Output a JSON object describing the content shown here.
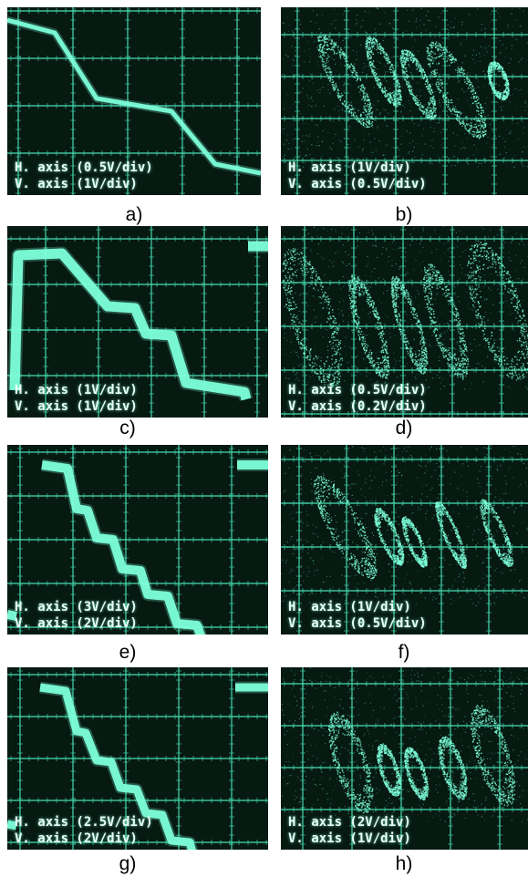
{
  "colors": {
    "screen": "#061a12",
    "grid": "#46d9b0",
    "trace": "#7dffd9"
  },
  "panels": [
    {
      "id": "a",
      "caption": "a)",
      "kind": "staircase",
      "h_axis": "H. axis (0.5V/div)",
      "v_axis": "V. axis (1V/div)"
    },
    {
      "id": "b",
      "caption": "b)",
      "kind": "scatter",
      "h_axis": "H. axis (1V/div)",
      "v_axis": "V. axis (0.5V/div)"
    },
    {
      "id": "c",
      "caption": "c)",
      "kind": "staircase",
      "h_axis": "H. axis (1V/div)",
      "v_axis": "V. axis (1V/div)"
    },
    {
      "id": "d",
      "caption": "d)",
      "kind": "scatter",
      "h_axis": "H. axis (0.5V/div)",
      "v_axis": "V. axis (0.2V/div)"
    },
    {
      "id": "e",
      "caption": "e)",
      "kind": "staircase",
      "h_axis": "H. axis (3V/div)",
      "v_axis": "V. axis (2V/div)"
    },
    {
      "id": "f",
      "caption": "f)",
      "kind": "scatter",
      "h_axis": "H. axis (1V/div)",
      "v_axis": "V. axis (0.5V/div)"
    },
    {
      "id": "g",
      "caption": "g)",
      "kind": "staircase",
      "h_axis": "H. axis (2.5V/div)",
      "v_axis": "V. axis (2V/div)"
    },
    {
      "id": "h",
      "caption": "h)",
      "kind": "scatter",
      "h_axis": "H. axis (2V/div)",
      "v_axis": "V. axis (1V/div)"
    }
  ]
}
